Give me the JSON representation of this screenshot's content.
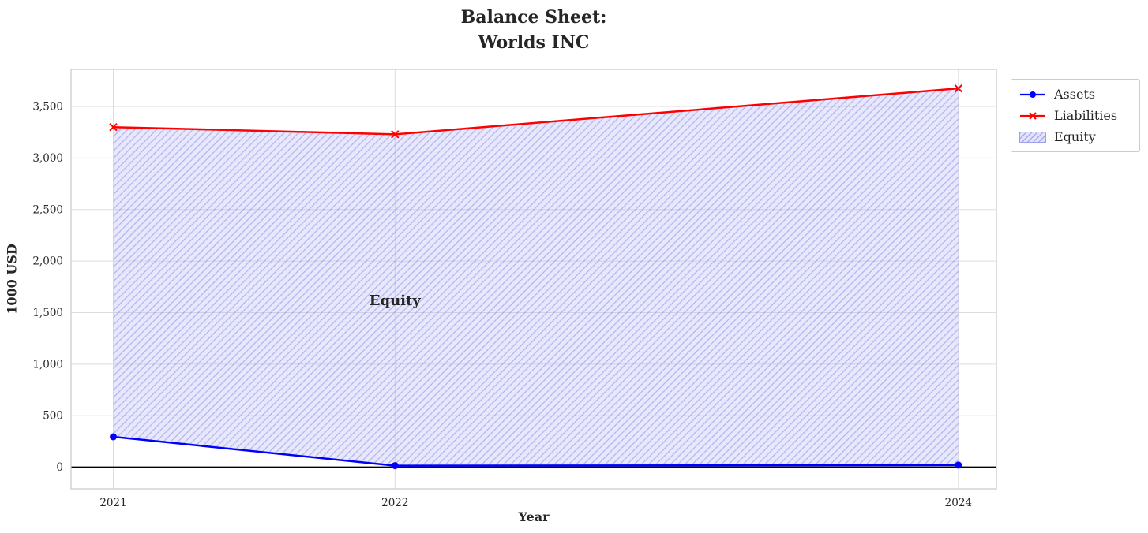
{
  "figure": {
    "title": "Balance Sheet:\nWorlds INC",
    "xlabel": "Year",
    "ylabel": "1000 USD",
    "legend": [
      {
        "label": "Assets",
        "kind": "line",
        "color": "#0000ff",
        "marker": "circle"
      },
      {
        "label": "Liabilities",
        "kind": "line",
        "color": "#ff0000",
        "marker": "x"
      },
      {
        "label": "Equity",
        "kind": "hatched-patch",
        "facecolor": "rgba(190,190,245,0.45)",
        "hatchcolor": "rgba(110,110,225,0.6)"
      }
    ]
  },
  "chart_data": {
    "type": "line",
    "title": "Balance Sheet:\nWorlds INC",
    "xlabel": "Year",
    "ylabel": "1000 USD",
    "x": [
      2021,
      2022,
      2024
    ],
    "xtick_labels": [
      "2021",
      "2022",
      "2024"
    ],
    "yticks": [
      0,
      500,
      1000,
      1500,
      2000,
      2500,
      3000,
      3500
    ],
    "ytick_labels": [
      "0",
      "500",
      "1,000",
      "1,500",
      "2,000",
      "2,500",
      "3,000",
      "3,500"
    ],
    "xlim": [
      2020.85,
      2024.135
    ],
    "ylim": [
      -210,
      3860
    ],
    "grid": true,
    "zero_line_color": "#000000",
    "series": [
      {
        "name": "Assets",
        "values": [
          295,
          15,
          20
        ],
        "color": "#0000ff",
        "marker": "o",
        "linewidth": 2.5
      },
      {
        "name": "Liabilities",
        "values": [
          3300,
          3230,
          3675
        ],
        "color": "#ff0000",
        "marker": "x",
        "linewidth": 2.5
      }
    ],
    "fill_between": {
      "label": "Equity",
      "upper_series": "Liabilities",
      "lower_series": "Assets",
      "facecolor": "rgba(190,190,245,0.35)",
      "hatchcolor": "rgba(110,110,225,0.45)",
      "hatch": "/"
    },
    "annotations": [
      {
        "text": "Equity",
        "x": 2022,
        "y": 1620,
        "color": "#ff0000",
        "fontsize": 18,
        "fontweight": "bold",
        "ha": "center"
      }
    ],
    "legend_position": "upper right outside"
  }
}
